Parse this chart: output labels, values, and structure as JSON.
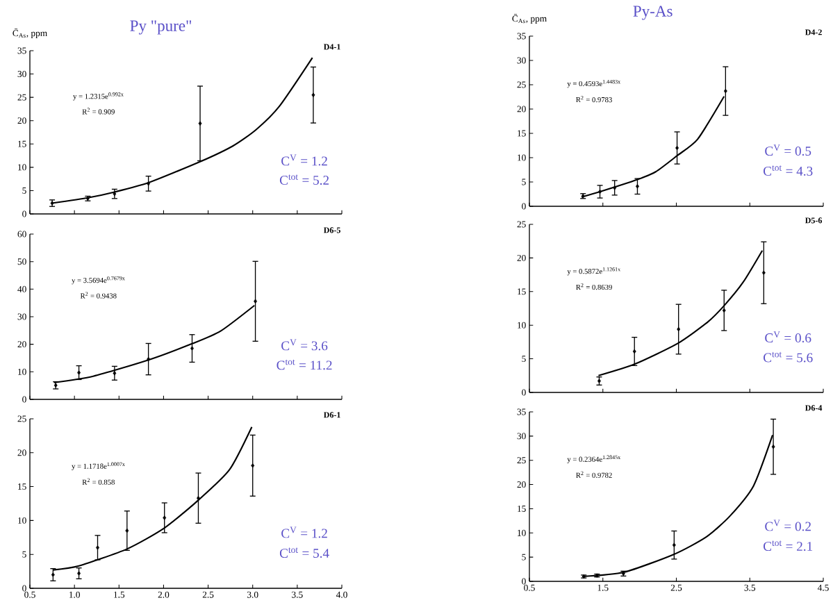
{
  "chart_data": [
    {
      "type": "scatter",
      "title": "Py \"pure\"",
      "ylabel": "C̄$_{As}$, ppm",
      "xlim": [
        0.5,
        4.0
      ],
      "xticks": [
        0.5,
        1,
        1.5,
        2,
        2.5,
        3,
        3.5,
        4
      ],
      "ylim": [
        0,
        35
      ],
      "yticks": [
        0,
        5,
        10,
        15,
        20,
        25,
        30,
        35
      ],
      "tick_labels": "y",
      "series": [
        {
          "marker": "diamond",
          "color": "#000000",
          "x": [
            0.75,
            1.15,
            1.45,
            1.83,
            2.41,
            3.68
          ],
          "values": [
            2.3,
            3.3,
            4.3,
            6.5,
            19.4,
            25.5
          ],
          "errors": [
            0.7,
            0.5,
            1.0,
            1.6,
            8,
            6
          ]
        },
        {
          "type": "line",
          "color": "#000000",
          "x": [
            0.75,
            1.16,
            1.45,
            1.83,
            2.41,
            2.78,
            3.04,
            3.3,
            3.67
          ],
          "values": [
            2.3,
            3.5,
            4.7,
            6.7,
            11.2,
            14.6,
            18.1,
            23.1,
            33.5
          ]
        }
      ],
      "annotations": [
        "D4-1",
        "y = 1.2315e$^{0.992x}$",
        "R$^{2}$ = 0.909",
        "C$^{V}$ = 1.2",
        "C$^{tot}$ = 5.2"
      ]
    },
    {
      "type": "scatter",
      "title": "Py-As",
      "ylabel": "C̄$_{As}$, ppm",
      "xlim": [
        0.5,
        4.5
      ],
      "xticks": [
        0.5,
        1.5,
        2.5,
        3.5,
        4.5
      ],
      "ylim": [
        0,
        35
      ],
      "yticks": [
        0,
        5,
        10,
        15,
        20,
        25,
        30,
        35
      ],
      "tick_labels": "y",
      "series": [
        {
          "marker": "diamond",
          "color": "#000000",
          "x": [
            1.23,
            1.46,
            1.66,
            1.97,
            2.51,
            3.17
          ],
          "values": [
            2.1,
            3.0,
            3.8,
            4.1,
            12.0,
            23.7
          ],
          "errors": [
            0.5,
            1.3,
            1.5,
            1.6,
            3.3,
            5
          ]
        },
        {
          "type": "line",
          "color": "#000000",
          "x": [
            1.21,
            1.46,
            1.97,
            2.22,
            2.51,
            2.79,
            3.15
          ],
          "values": [
            1.9,
            3.0,
            5.5,
            7.1,
            10.4,
            13.8,
            22.6
          ]
        }
      ],
      "annotations": [
        "D4-2",
        "y = 0.4593e$^{1.4483x}$",
        "R$^{2}$ = 0.9783",
        "C$^{V}$ = 0.5",
        "C$^{tot}$ = 4.3"
      ]
    },
    {
      "type": "scatter",
      "xlim": [
        0.5,
        4.0
      ],
      "xticks": [
        0.5,
        1,
        1.5,
        2,
        2.5,
        3,
        3.5,
        4
      ],
      "ylim": [
        0,
        60
      ],
      "yticks": [
        0,
        10,
        20,
        30,
        40,
        50,
        60
      ],
      "tick_labels": "y",
      "series": [
        {
          "marker": "diamond",
          "color": "#000000",
          "x": [
            0.79,
            1.05,
            1.45,
            1.83,
            2.32,
            3.03
          ],
          "values": [
            5.1,
            9.7,
            9.5,
            14.6,
            18.5,
            35.6
          ],
          "errors": [
            1.3,
            2.5,
            2.5,
            5.7,
            5,
            14.5
          ]
        },
        {
          "type": "line",
          "color": "#000000",
          "x": [
            0.77,
            1.21,
            1.83,
            2.32,
            2.64,
            3.02
          ],
          "values": [
            6.1,
            8.4,
            14.3,
            20.2,
            24.8,
            34.1
          ]
        }
      ],
      "annotations": [
        "D6-5",
        "y = 3.5694e$^{0.7679x}$",
        "R$^{2}$ = 0.9438",
        "C$^{V}$ = 3.6",
        "C$^{tot}$ = 11.2"
      ]
    },
    {
      "type": "scatter",
      "xlim": [
        0.5,
        4.5
      ],
      "xticks": [
        0.5,
        1.5,
        2.5,
        3.5,
        4.5
      ],
      "ylim": [
        0,
        25
      ],
      "yticks": [
        0,
        5,
        10,
        15,
        20,
        25
      ],
      "tick_labels": "y",
      "series": [
        {
          "marker": "diamond",
          "color": "#000000",
          "x": [
            1.45,
            1.93,
            2.53,
            3.15,
            3.69
          ],
          "values": [
            1.7,
            6.1,
            9.4,
            12.2,
            17.8
          ],
          "errors": [
            0.6,
            2.1,
            3.7,
            3.0,
            4.6
          ]
        },
        {
          "type": "line",
          "color": "#000000",
          "x": [
            1.44,
            1.93,
            2.52,
            2.93,
            3.15,
            3.41,
            3.67
          ],
          "values": [
            2.5,
            4.2,
            7.3,
            10.5,
            12.9,
            16.4,
            21.1
          ]
        }
      ],
      "annotations": [
        "D5-6",
        "y = 0.5872e$^{1.1261x}$",
        "R$^{2}$ = 0.8639",
        "C$^{V}$ = 0.6",
        "C$^{tot}$ = 5.6"
      ]
    },
    {
      "type": "scatter",
      "xlim": [
        0.5,
        4.0
      ],
      "xticks": [
        0.5,
        {
          "value": 1,
          "label": "1.0"
        },
        1.5,
        {
          "value": 2,
          "label": "2.0"
        },
        2.5,
        {
          "value": 3,
          "label": "3.0"
        },
        3.5,
        {
          "value": 4,
          "label": "4.0"
        }
      ],
      "ylim": [
        0,
        25
      ],
      "yticks": [
        0,
        5,
        10,
        15,
        20,
        25
      ],
      "series": [
        {
          "marker": "diamond",
          "color": "#000000",
          "x": [
            0.76,
            1.05,
            1.26,
            1.59,
            2.01,
            2.39,
            3.0
          ],
          "values": [
            2.0,
            2.2,
            6.0,
            8.5,
            10.4,
            13.3,
            18.1
          ],
          "errors": [
            0.9,
            0.8,
            1.8,
            2.9,
            2.2,
            3.7,
            4.5
          ]
        },
        {
          "type": "line",
          "color": "#000000",
          "x": [
            0.76,
            1.05,
            1.59,
            2.01,
            2.39,
            2.74,
            2.99
          ],
          "values": [
            2.7,
            3.3,
            5.8,
            8.9,
            13.0,
            17.5,
            23.8
          ]
        }
      ],
      "annotations": [
        "D6-1",
        "y = 1.1718e$^{1.0007x}$",
        "R$^{2}$ = 0.858",
        "C$^{V}$ = 1.2",
        "C$^{tot}$ = 5.4"
      ]
    },
    {
      "type": "scatter",
      "xlim": [
        0.5,
        4.5
      ],
      "xticks": [
        0.5,
        1.5,
        2.5,
        3.5,
        4.5
      ],
      "ylim": [
        0,
        35
      ],
      "yticks": [
        0,
        5,
        10,
        15,
        20,
        25,
        30,
        35
      ],
      "series": [
        {
          "marker": "diamond",
          "color": "#000000",
          "x": [
            1.24,
            1.42,
            1.78,
            2.47,
            3.82
          ],
          "values": [
            1.0,
            1.2,
            1.6,
            7.5,
            27.8
          ],
          "errors": [
            0.3,
            0.3,
            0.5,
            2.9,
            5.7
          ]
        },
        {
          "type": "line",
          "color": "#000000",
          "x": [
            1.22,
            1.79,
            2.47,
            2.91,
            3.23,
            3.55,
            3.81
          ],
          "values": [
            1.0,
            1.9,
            5.6,
            9.2,
            13.5,
            19.7,
            30.2
          ]
        }
      ],
      "annotations": [
        "D6-4",
        "y = 0.2364e$^{1.2845x}$",
        "R$^{2}$ = 0.9782",
        "C$^{V}$ = 0.2",
        "C$^{tot}$ = 2.1"
      ]
    }
  ]
}
